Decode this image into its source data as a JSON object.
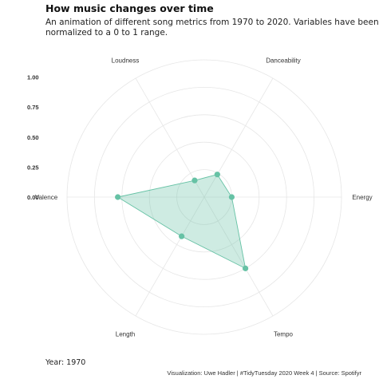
{
  "title": "How music changes over time",
  "subtitle": "An animation of different song metrics from 1970 to 2020. Variables have been normalized to a 0 to 1 range.",
  "year_label": "Year: 1970",
  "caption": "Visualization: Uwe Hadler | #TidyTuesday 2020 Week 4 | Source: Spotifyr",
  "chart_data": {
    "type": "radar",
    "axes": [
      "Danceability",
      "Energy",
      "Tempo",
      "Length",
      "Valence",
      "Loudness"
    ],
    "values": [
      0.19,
      0.2,
      0.6,
      0.33,
      0.63,
      0.14
    ],
    "r_ticks": [
      "0.00",
      "0.25",
      "0.50",
      "0.75",
      "1.00"
    ],
    "r_range": [
      0,
      1
    ],
    "fill_color": "#66c2a5",
    "line_color": "#66c2a5",
    "grid": true
  }
}
